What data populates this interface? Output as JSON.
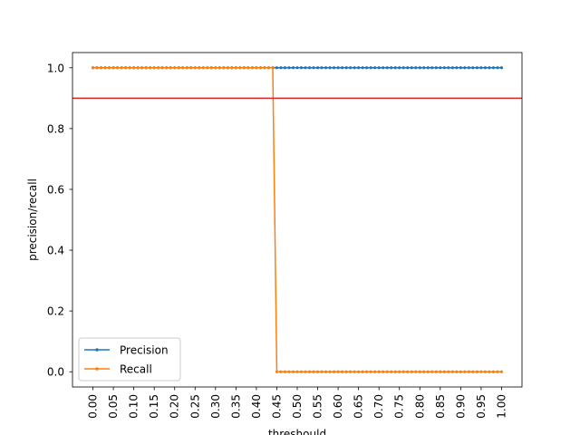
{
  "chart_data": {
    "type": "line",
    "xlabel": "threshould",
    "ylabel": "precision/recall",
    "x": {
      "start": 0.0,
      "end": 1.0,
      "step": 0.01
    },
    "x_ticks": [
      "0.00",
      "0.05",
      "0.10",
      "0.15",
      "0.20",
      "0.25",
      "0.30",
      "0.35",
      "0.40",
      "0.45",
      "0.50",
      "0.55",
      "0.60",
      "0.65",
      "0.70",
      "0.75",
      "0.80",
      "0.85",
      "0.90",
      "0.95",
      "1.00"
    ],
    "y_ticks": [
      "0.0",
      "0.2",
      "0.4",
      "0.6",
      "0.8",
      "1.0"
    ],
    "xlim": [
      -0.05,
      1.05
    ],
    "ylim": [
      -0.05,
      1.05
    ],
    "grid": false,
    "legend": "lower-left",
    "series": [
      {
        "name": "Precision",
        "color": "#1f77b4",
        "marker": "dot",
        "rule": "constant",
        "value": 1.0
      },
      {
        "name": "Recall",
        "color": "#ff7f0e",
        "marker": "dot",
        "rule": "step",
        "high": 1.0,
        "low": 0.0,
        "switch_after_x": 0.44
      }
    ],
    "reference_line": {
      "y": 0.9,
      "color": "#d62728"
    }
  }
}
